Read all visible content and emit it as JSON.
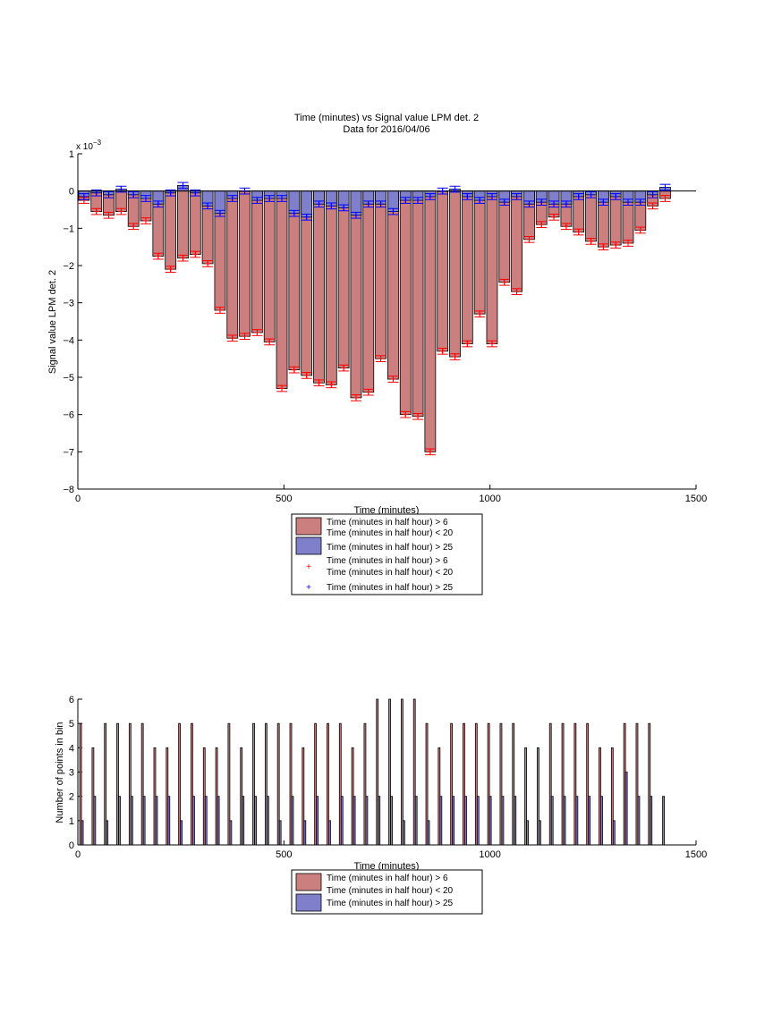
{
  "chart_data": [
    {
      "type": "bar",
      "title": "Time (minutes) vs Signal value LPM det. 2",
      "subtitle": "Data for 2016/04/06",
      "xlabel": "Time (minutes)",
      "ylabel": "Signal value LPM det. 2",
      "y_multiplier": "x 10",
      "y_multiplier_exp": "−3",
      "xlim": [
        0,
        1500
      ],
      "ylim": [
        -8,
        1
      ],
      "xticks": [
        "0",
        "500",
        "1000",
        "1500"
      ],
      "yticks": [
        "−8",
        "−7",
        "−6",
        "−5",
        "−4",
        "−3",
        "−2",
        "−1",
        "0",
        "1"
      ],
      "grid": false,
      "legend_position": "below",
      "legend": {
        "bar1": [
          "Time (minutes in half hour) > 6",
          "Time (minutes in half hour) < 20"
        ],
        "bar2": "Time (minutes in half hour) > 25",
        "mark1": [
          "Time (minutes in half hour) > 6",
          "Time (minutes in half hour) < 20"
        ],
        "mark2": "Time (minutes in half hour) > 25"
      },
      "colors": {
        "series1": "#cc7f7f",
        "series2": "#7f7fcc",
        "marker1": "#ff0000",
        "marker2": "#0000ff"
      },
      "x": [
        15,
        45,
        75,
        105,
        135,
        165,
        195,
        225,
        255,
        285,
        315,
        345,
        375,
        405,
        435,
        465,
        495,
        525,
        555,
        585,
        615,
        645,
        675,
        705,
        735,
        765,
        795,
        825,
        855,
        885,
        915,
        945,
        975,
        1005,
        1035,
        1065,
        1095,
        1125,
        1155,
        1185,
        1215,
        1245,
        1275,
        1305,
        1335,
        1365,
        1395,
        1425
      ],
      "series": [
        {
          "values": [
            -0.25,
            -0.55,
            -0.65,
            -0.55,
            -0.95,
            -0.8,
            -1.75,
            -2.1,
            -1.8,
            -1.7,
            -1.95,
            -3.2,
            -3.95,
            -3.9,
            -3.8,
            -4.05,
            -5.3,
            -4.8,
            -4.95,
            -5.15,
            -5.2,
            -4.75,
            -5.55,
            -5.4,
            -4.5,
            -5.05,
            -6,
            -6.05,
            -7,
            -4.3,
            -4.45,
            -4.1,
            -3.3,
            -4.1,
            -2.45,
            -2.7,
            -1.3,
            -0.9,
            -0.7,
            -0.95,
            -1.1,
            -1.35,
            -1.5,
            -1.45,
            -1.4,
            -1.05,
            -0.4,
            -0.2
          ]
        },
        {
          "values": [
            -0.15,
            -0.05,
            -0.1,
            0.05,
            -0.1,
            -0.2,
            -0.35,
            -0.05,
            0.15,
            -0.05,
            -0.4,
            -0.6,
            -0.2,
            0.0,
            -0.25,
            -0.2,
            -0.2,
            -0.6,
            -0.7,
            -0.35,
            -0.4,
            -0.45,
            -0.65,
            -0.35,
            -0.35,
            -0.55,
            -0.25,
            -0.25,
            -0.15,
            0.0,
            0.05,
            -0.15,
            -0.25,
            -0.15,
            -0.3,
            -0.15,
            -0.35,
            -0.3,
            -0.35,
            -0.35,
            -0.15,
            -0.1,
            -0.3,
            -0.15,
            -0.3,
            -0.3,
            -0.1,
            0.1
          ]
        }
      ]
    },
    {
      "type": "bar",
      "xlabel": "Time (minutes)",
      "ylabel": "Number of points in bin",
      "xlim": [
        0,
        1500
      ],
      "ylim": [
        0,
        6
      ],
      "xticks": [
        "0",
        "500",
        "1000",
        "1500"
      ],
      "yticks": [
        "0",
        "1",
        "2",
        "3",
        "4",
        "5",
        "6"
      ],
      "grid": false,
      "legend_position": "below",
      "legend": {
        "bar1": [
          "Time (minutes in half hour) > 6",
          "Time (minutes in half hour) < 20"
        ],
        "bar2": "Time (minutes in half hour) > 25"
      },
      "colors": {
        "series1": "#cc7f7f",
        "series2": "#7f7fcc"
      },
      "x": [
        15,
        45,
        75,
        105,
        135,
        165,
        195,
        225,
        255,
        285,
        315,
        345,
        375,
        405,
        435,
        465,
        495,
        525,
        555,
        585,
        615,
        645,
        675,
        705,
        735,
        765,
        795,
        825,
        855,
        885,
        915,
        945,
        975,
        1005,
        1035,
        1065,
        1095,
        1125,
        1155,
        1185,
        1215,
        1245,
        1275,
        1305,
        1335,
        1365,
        1395,
        1425
      ],
      "series": [
        {
          "values": [
            5,
            4,
            5,
            5,
            5,
            5,
            4,
            4,
            5,
            5,
            4,
            4,
            5,
            4,
            5,
            5,
            5,
            5,
            4,
            5,
            5,
            5,
            4,
            5,
            6,
            6,
            6,
            6,
            5,
            4,
            5,
            5,
            5,
            5,
            5,
            5,
            4,
            4,
            5,
            5,
            5,
            5,
            4,
            4,
            5,
            5,
            5,
            0
          ]
        },
        {
          "values": [
            1,
            2,
            1,
            2,
            2,
            2,
            2,
            2,
            1,
            2,
            2,
            2,
            1,
            2,
            2,
            2,
            1,
            2,
            1,
            2,
            1,
            2,
            2,
            2,
            2,
            2,
            1,
            2,
            1,
            2,
            2,
            2,
            2,
            2,
            2,
            2,
            1,
            1,
            2,
            2,
            2,
            2,
            2,
            1,
            3,
            2,
            2,
            2
          ]
        }
      ]
    }
  ]
}
